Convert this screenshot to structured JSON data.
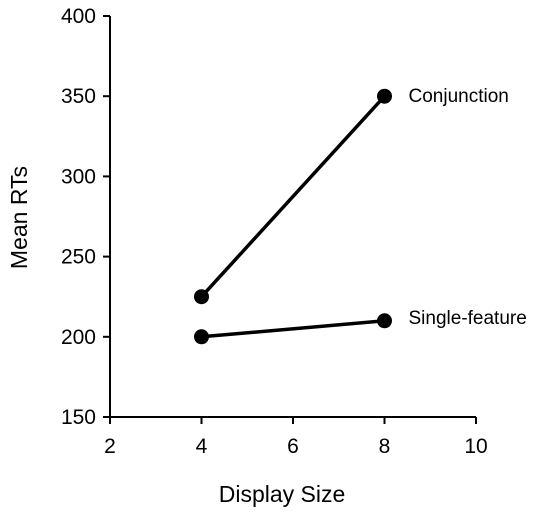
{
  "chart_data": {
    "type": "line",
    "title": "",
    "xlabel": "Display Size",
    "ylabel": "Mean RTs",
    "xlim": [
      2,
      10
    ],
    "ylim": [
      150,
      400
    ],
    "xticks": [
      2,
      4,
      6,
      8,
      10
    ],
    "yticks": [
      150,
      200,
      250,
      300,
      350,
      400
    ],
    "grid": false,
    "legend": "none (series labeled directly at line ends)",
    "series": [
      {
        "name": "Conjunction",
        "x": [
          4,
          8
        ],
        "y": [
          225,
          350
        ],
        "color": "#000000"
      },
      {
        "name": "Single-feature",
        "x": [
          4,
          8
        ],
        "y": [
          200,
          210
        ],
        "color": "#000000"
      }
    ]
  }
}
